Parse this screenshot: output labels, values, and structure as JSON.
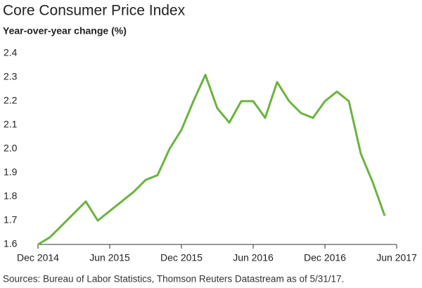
{
  "chart_data": {
    "type": "line",
    "title": "Core Consumer Price Index",
    "subtitle": "Year-over-year change (%)",
    "x": [
      "2014-12",
      "2015-01",
      "2015-02",
      "2015-03",
      "2015-04",
      "2015-05",
      "2015-06",
      "2015-07",
      "2015-08",
      "2015-09",
      "2015-10",
      "2015-11",
      "2015-12",
      "2016-01",
      "2016-02",
      "2016-03",
      "2016-04",
      "2016-05",
      "2016-06",
      "2016-07",
      "2016-08",
      "2016-09",
      "2016-10",
      "2016-11",
      "2016-12",
      "2017-01",
      "2017-02",
      "2017-03",
      "2017-04",
      "2017-05"
    ],
    "series": [
      {
        "name": "Core CPI",
        "color": "#6ab43e",
        "values": [
          1.6,
          1.63,
          1.68,
          1.73,
          1.78,
          1.7,
          1.74,
          1.78,
          1.82,
          1.87,
          1.89,
          2.0,
          2.08,
          2.2,
          2.31,
          2.17,
          2.11,
          2.2,
          2.2,
          2.13,
          2.28,
          2.2,
          2.15,
          2.13,
          2.2,
          2.24,
          2.2,
          1.98,
          1.86,
          1.72
        ]
      }
    ],
    "xlim": [
      "2014-12",
      "2017-06"
    ],
    "xticks": [
      {
        "value": "2014-12",
        "label": "Dec 2014"
      },
      {
        "value": "2015-06",
        "label": "Jun 2015"
      },
      {
        "value": "2015-12",
        "label": "Dec 2015"
      },
      {
        "value": "2016-06",
        "label": "Jun 2016"
      },
      {
        "value": "2016-12",
        "label": "Dec 2016"
      },
      {
        "value": "2017-06",
        "label": "Jun 2017"
      }
    ],
    "ylim": [
      1.6,
      2.4
    ],
    "yticks": [
      {
        "value": 1.6,
        "label": "1.6"
      },
      {
        "value": 1.7,
        "label": "1.7"
      },
      {
        "value": 1.8,
        "label": "1.8"
      },
      {
        "value": 1.9,
        "label": "1.9"
      },
      {
        "value": 2.0,
        "label": "2.0"
      },
      {
        "value": 2.1,
        "label": "2.1"
      },
      {
        "value": 2.2,
        "label": "2.2"
      },
      {
        "value": 2.3,
        "label": "2.3"
      },
      {
        "value": 2.4,
        "label": "2.4"
      }
    ],
    "source": "Sources: Bureau of Labor Statistics, Thomson Reuters Datastream as of 5/31/17."
  }
}
